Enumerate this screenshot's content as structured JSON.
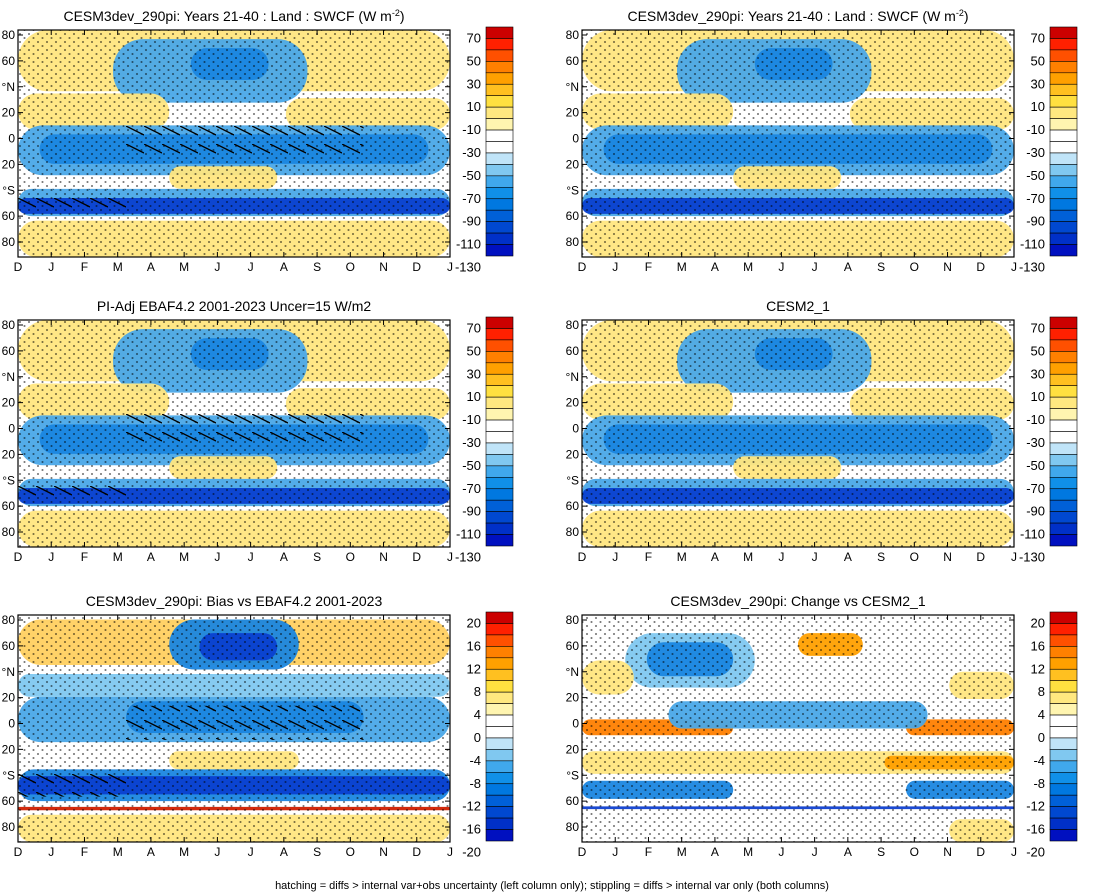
{
  "footer": "hatching = diffs > internal var+obs uncertainty (left column only); stippling = diffs > internal var only (both columns)",
  "months": [
    "D",
    "J",
    "F",
    "M",
    "A",
    "M",
    "J",
    "J",
    "A",
    "S",
    "O",
    "N",
    "D",
    "J"
  ],
  "lat_ticks": [
    "80",
    "60",
    "°N",
    "20",
    "0",
    "20",
    "°S",
    "60",
    "80"
  ],
  "colorbars": {
    "abs": {
      "labels": [
        "70",
        "50",
        "30",
        "10",
        "-10",
        "-30",
        "-50",
        "-70",
        "-90",
        "-110",
        "-130"
      ],
      "colors": [
        "#cc0000",
        "#ff2000",
        "#ff5000",
        "#ff8000",
        "#ffa000",
        "#ffc020",
        "#ffe040",
        "#ffe880",
        "#fff5b0",
        "#ffffff",
        "#ffffff",
        "#c0e4f8",
        "#80c8f0",
        "#40a8ec",
        "#1090e8",
        "#0078e0",
        "#0060d8",
        "#0048d0",
        "#0030c8",
        "#0010c0"
      ]
    },
    "diff": {
      "labels": [
        "20",
        "16",
        "12",
        "8",
        "4",
        "0",
        "-4",
        "-8",
        "-12",
        "-16",
        "-20"
      ],
      "colors": [
        "#cc0000",
        "#ff2000",
        "#ff5000",
        "#ff8000",
        "#ffa000",
        "#ffc020",
        "#ffe040",
        "#ffe880",
        "#fff5b0",
        "#ffffff",
        "#ffffff",
        "#c0e4f8",
        "#80c8f0",
        "#40a8ec",
        "#1090e8",
        "#0078e0",
        "#0060d8",
        "#0048d0",
        "#0030c8",
        "#0010c0"
      ]
    }
  },
  "chart_data": [
    {
      "type": "heatmap",
      "title": "CESM3dev_290pi: Years 21-40 : Land : SWCF (W m",
      "title_sup": "-2",
      "title_tail": ")",
      "kind": "abs",
      "hatching": true,
      "x": [
        "D",
        "J",
        "F",
        "M",
        "A",
        "M",
        "J",
        "J",
        "A",
        "S",
        "O",
        "N",
        "D",
        "J"
      ],
      "y_ticks": [
        "80",
        "60",
        "°N",
        "20",
        "0",
        "20",
        "°S",
        "60",
        "80"
      ],
      "colorbar_labels": [
        "70",
        "50",
        "30",
        "10",
        "-10",
        "-30",
        "-50",
        "-70",
        "-90",
        "-110",
        "-130"
      ]
    },
    {
      "type": "heatmap",
      "title": "CESM3dev_290pi: Years 21-40 : Land : SWCF (W m",
      "title_sup": "-2",
      "title_tail": ")",
      "kind": "abs",
      "hatching": false,
      "x": [
        "D",
        "J",
        "F",
        "M",
        "A",
        "M",
        "J",
        "J",
        "A",
        "S",
        "O",
        "N",
        "D",
        "J"
      ],
      "y_ticks": [
        "80",
        "60",
        "°N",
        "20",
        "0",
        "20",
        "°S",
        "60",
        "80"
      ],
      "colorbar_labels": [
        "70",
        "50",
        "30",
        "10",
        "-10",
        "-30",
        "-50",
        "-70",
        "-90",
        "-110",
        "-130"
      ]
    },
    {
      "type": "heatmap",
      "title": "PI-Adj EBAF4.2 2001-2023 Uncer=15 W/m2",
      "kind": "abs",
      "hatching": true,
      "x": [
        "D",
        "J",
        "F",
        "M",
        "A",
        "M",
        "J",
        "J",
        "A",
        "S",
        "O",
        "N",
        "D",
        "J"
      ],
      "y_ticks": [
        "80",
        "60",
        "°N",
        "20",
        "0",
        "20",
        "°S",
        "60",
        "80"
      ],
      "colorbar_labels": [
        "70",
        "50",
        "30",
        "10",
        "-10",
        "-30",
        "-50",
        "-70",
        "-90",
        "-110",
        "-130"
      ]
    },
    {
      "type": "heatmap",
      "title": "CESM2_1",
      "kind": "abs",
      "hatching": false,
      "x": [
        "D",
        "J",
        "F",
        "M",
        "A",
        "M",
        "J",
        "J",
        "A",
        "S",
        "O",
        "N",
        "D",
        "J"
      ],
      "y_ticks": [
        "80",
        "60",
        "°N",
        "20",
        "0",
        "20",
        "°S",
        "60",
        "80"
      ],
      "colorbar_labels": [
        "70",
        "50",
        "30",
        "10",
        "-10",
        "-30",
        "-50",
        "-70",
        "-90",
        "-110",
        "-130"
      ]
    },
    {
      "type": "heatmap",
      "title": "CESM3dev_290pi: Bias vs EBAF4.2 2001-2023",
      "kind": "diff",
      "hatching": true,
      "x": [
        "D",
        "J",
        "F",
        "M",
        "A",
        "M",
        "J",
        "J",
        "A",
        "S",
        "O",
        "N",
        "D",
        "J"
      ],
      "y_ticks": [
        "80",
        "60",
        "°N",
        "20",
        "0",
        "20",
        "°S",
        "60",
        "80"
      ],
      "colorbar_labels": [
        "20",
        "16",
        "12",
        "8",
        "4",
        "0",
        "-4",
        "-8",
        "-12",
        "-16",
        "-20"
      ]
    },
    {
      "type": "heatmap",
      "title": "CESM3dev_290pi: Change vs CESM2_1",
      "kind": "diff",
      "hatching": false,
      "x": [
        "D",
        "J",
        "F",
        "M",
        "A",
        "M",
        "J",
        "J",
        "A",
        "S",
        "O",
        "N",
        "D",
        "J"
      ],
      "y_ticks": [
        "80",
        "60",
        "°N",
        "20",
        "0",
        "20",
        "°S",
        "60",
        "80"
      ],
      "colorbar_labels": [
        "20",
        "16",
        "12",
        "8",
        "4",
        "0",
        "-4",
        "-8",
        "-12",
        "-16",
        "-20"
      ]
    }
  ]
}
